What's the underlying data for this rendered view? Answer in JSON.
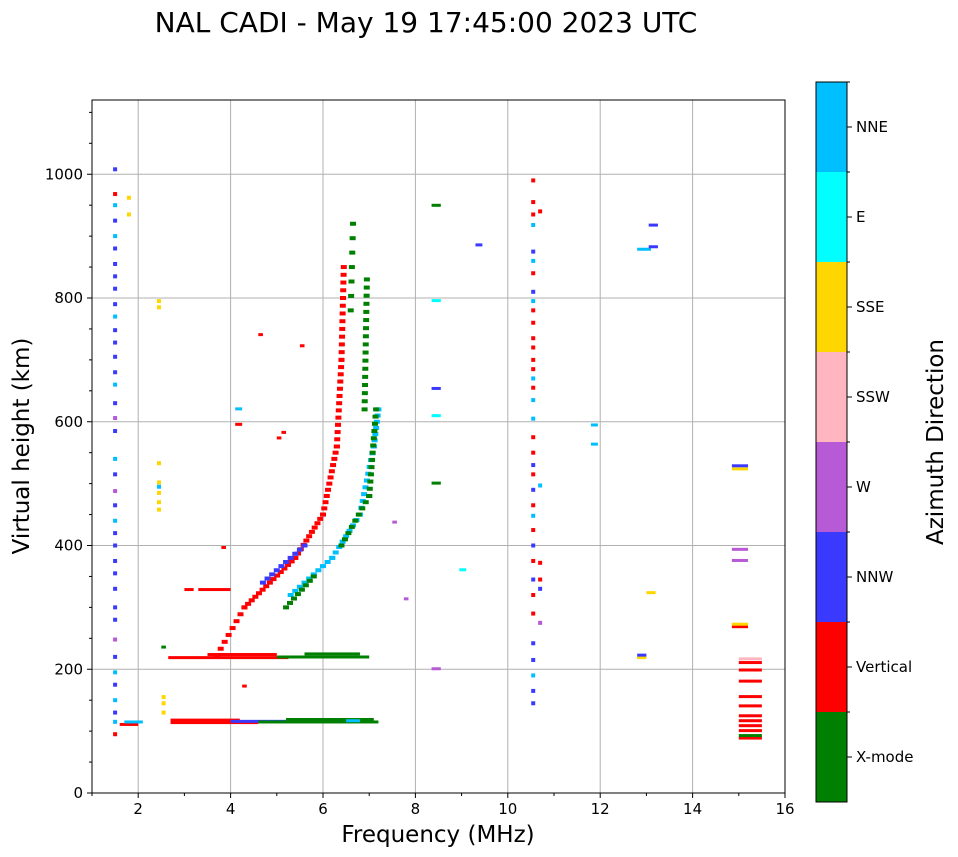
{
  "chart_data": {
    "type": "scatter",
    "title": "NAL CADI - May 19 17:45:00 2023 UTC",
    "xlabel": "Frequency (MHz)",
    "ylabel": "Virtual height (km)",
    "xlim": [
      1,
      16
    ],
    "ylim": [
      0,
      1120
    ],
    "xticks": [
      2,
      4,
      6,
      8,
      10,
      12,
      14,
      16
    ],
    "yticks": [
      0,
      200,
      400,
      600,
      800,
      1000
    ],
    "grid": true,
    "colorbar": {
      "title": "Azimuth Direction",
      "categories": [
        {
          "label": "X-mode",
          "color": "#008000"
        },
        {
          "label": "Vertical",
          "color": "#ff0000"
        },
        {
          "label": "NNW",
          "color": "#3a3aff"
        },
        {
          "label": "W",
          "color": "#b65ad6"
        },
        {
          "label": "SSW",
          "color": "#ffb6c1"
        },
        {
          "label": "SSE",
          "color": "#ffd700"
        },
        {
          "label": "E",
          "color": "#00ffff"
        },
        {
          "label": "NNE",
          "color": "#00bfff"
        }
      ]
    },
    "segments": [
      {
        "dir": "Vertical",
        "f1": 2.65,
        "f2": 5.25,
        "h": 218
      },
      {
        "dir": "Vertical",
        "f1": 3.5,
        "f2": 5.0,
        "h": 223
      },
      {
        "dir": "X-mode",
        "f1": 5.0,
        "f2": 7.0,
        "h": 219
      },
      {
        "dir": "X-mode",
        "f1": 5.6,
        "f2": 6.8,
        "h": 224
      },
      {
        "dir": "X-mode",
        "f1": 2.5,
        "f2": 2.6,
        "h": 235
      },
      {
        "dir": "Vertical",
        "f1": 2.7,
        "f2": 4.6,
        "h": 113
      },
      {
        "dir": "Vertical",
        "f1": 2.7,
        "f2": 4.2,
        "h": 117
      },
      {
        "dir": "NNW",
        "f1": 4.0,
        "f2": 5.2,
        "h": 115
      },
      {
        "dir": "X-mode",
        "f1": 4.6,
        "f2": 7.2,
        "h": 114
      },
      {
        "dir": "X-mode",
        "f1": 5.2,
        "f2": 7.1,
        "h": 118
      },
      {
        "dir": "NNE",
        "f1": 6.5,
        "f2": 6.8,
        "h": 116
      },
      {
        "dir": "Vertical",
        "f1": 3.3,
        "f2": 4.0,
        "h": 328
      },
      {
        "dir": "Vertical",
        "f1": 3.0,
        "f2": 3.2,
        "h": 328
      },
      {
        "dir": "Vertical",
        "f1": 1.6,
        "f2": 2.0,
        "h": 110
      },
      {
        "dir": "NNE",
        "f1": 1.7,
        "f2": 2.1,
        "h": 114
      },
      {
        "dir": "Vertical",
        "f1": 15.0,
        "f2": 15.5,
        "h": 88
      },
      {
        "dir": "X-mode",
        "f1": 15.0,
        "f2": 15.5,
        "h": 92
      },
      {
        "dir": "Vertical",
        "f1": 15.0,
        "f2": 15.5,
        "h": 100
      },
      {
        "dir": "Vertical",
        "f1": 15.0,
        "f2": 15.5,
        "h": 108
      },
      {
        "dir": "Vertical",
        "f1": 15.0,
        "f2": 15.5,
        "h": 116
      },
      {
        "dir": "Vertical",
        "f1": 15.0,
        "f2": 15.5,
        "h": 124
      },
      {
        "dir": "Vertical",
        "f1": 15.0,
        "f2": 15.5,
        "h": 140
      },
      {
        "dir": "Vertical",
        "f1": 15.0,
        "f2": 15.5,
        "h": 155
      },
      {
        "dir": "Vertical",
        "f1": 15.0,
        "f2": 15.5,
        "h": 180
      },
      {
        "dir": "Vertical",
        "f1": 15.0,
        "f2": 15.5,
        "h": 198
      },
      {
        "dir": "Vertical",
        "f1": 15.0,
        "f2": 15.5,
        "h": 210
      },
      {
        "dir": "SSW",
        "f1": 15.0,
        "f2": 15.5,
        "h": 216
      },
      {
        "dir": "Vertical",
        "f1": 14.85,
        "f2": 15.2,
        "h": 268
      },
      {
        "dir": "SSE",
        "f1": 14.85,
        "f2": 15.2,
        "h": 272
      },
      {
        "dir": "W",
        "f1": 14.85,
        "f2": 15.2,
        "h": 375
      },
      {
        "dir": "W",
        "f1": 14.85,
        "f2": 15.2,
        "h": 393
      },
      {
        "dir": "SSE",
        "f1": 14.85,
        "f2": 15.2,
        "h": 523
      },
      {
        "dir": "NNW",
        "f1": 14.85,
        "f2": 15.2,
        "h": 528
      },
      {
        "dir": "SSE",
        "f1": 12.8,
        "f2": 13.0,
        "h": 218
      },
      {
        "dir": "NNW",
        "f1": 12.8,
        "f2": 13.0,
        "h": 222
      },
      {
        "dir": "SSE",
        "f1": 13.0,
        "f2": 13.2,
        "h": 323
      },
      {
        "dir": "NNE",
        "f1": 12.8,
        "f2": 13.1,
        "h": 878
      },
      {
        "dir": "NNW",
        "f1": 13.05,
        "f2": 13.25,
        "h": 882
      },
      {
        "dir": "NNW",
        "f1": 13.05,
        "f2": 13.25,
        "h": 917
      },
      {
        "dir": "NNE",
        "f1": 11.8,
        "f2": 11.95,
        "h": 563
      },
      {
        "dir": "NNE",
        "f1": 11.8,
        "f2": 11.95,
        "h": 594
      },
      {
        "dir": "X-mode",
        "f1": 8.35,
        "f2": 8.55,
        "h": 500
      },
      {
        "dir": "NNW",
        "f1": 8.35,
        "f2": 8.55,
        "h": 653
      },
      {
        "dir": "E",
        "f1": 8.35,
        "f2": 8.55,
        "h": 609
      },
      {
        "dir": "E",
        "f1": 8.35,
        "f2": 8.55,
        "h": 795
      },
      {
        "dir": "X-mode",
        "f1": 8.35,
        "f2": 8.55,
        "h": 949
      },
      {
        "dir": "W",
        "f1": 8.35,
        "f2": 8.55,
        "h": 200
      },
      {
        "dir": "E",
        "f1": 8.95,
        "f2": 9.1,
        "h": 360
      },
      {
        "dir": "NNW",
        "f1": 9.3,
        "f2": 9.45,
        "h": 885
      },
      {
        "dir": "W",
        "f1": 7.75,
        "f2": 7.85,
        "h": 313
      },
      {
        "dir": "W",
        "f1": 7.5,
        "f2": 7.6,
        "h": 437
      },
      {
        "dir": "NNE",
        "f1": 4.1,
        "f2": 4.25,
        "h": 620
      },
      {
        "dir": "Vertical",
        "f1": 4.1,
        "f2": 4.25,
        "h": 595
      },
      {
        "dir": "Vertical",
        "f1": 4.6,
        "f2": 4.7,
        "h": 740
      },
      {
        "dir": "Vertical",
        "f1": 5.5,
        "f2": 5.6,
        "h": 722
      },
      {
        "dir": "Vertical",
        "f1": 5.0,
        "f2": 5.1,
        "h": 573
      },
      {
        "dir": "Vertical",
        "f1": 5.1,
        "f2": 5.2,
        "h": 582
      },
      {
        "dir": "Vertical",
        "f1": 4.25,
        "f2": 4.35,
        "h": 172
      },
      {
        "dir": "Vertical",
        "f1": 3.8,
        "f2": 3.9,
        "h": 396
      }
    ],
    "columns": [
      {
        "f": 1.5,
        "points": [
          {
            "dir": "NNW",
            "h": 1008
          },
          {
            "dir": "Vertical",
            "h": 968
          },
          {
            "dir": "NNE",
            "h": 950
          },
          {
            "dir": "NNW",
            "h": 925
          },
          {
            "dir": "NNE",
            "h": 900
          },
          {
            "dir": "NNW",
            "h": 880
          },
          {
            "dir": "NNW",
            "h": 855
          },
          {
            "dir": "NNW",
            "h": 835
          },
          {
            "dir": "NNW",
            "h": 815
          },
          {
            "dir": "NNW",
            "h": 790
          },
          {
            "dir": "NNE",
            "h": 770
          },
          {
            "dir": "NNW",
            "h": 748
          },
          {
            "dir": "NNW",
            "h": 728
          },
          {
            "dir": "NNW",
            "h": 705
          },
          {
            "dir": "NNW",
            "h": 680
          },
          {
            "dir": "NNE",
            "h": 660
          },
          {
            "dir": "NNW",
            "h": 630
          },
          {
            "dir": "W",
            "h": 606
          },
          {
            "dir": "NNW",
            "h": 585
          },
          {
            "dir": "NNE",
            "h": 540
          },
          {
            "dir": "NNW",
            "h": 515
          },
          {
            "dir": "W",
            "h": 488
          },
          {
            "dir": "NNW",
            "h": 465
          },
          {
            "dir": "NNE",
            "h": 440
          },
          {
            "dir": "NNW",
            "h": 420
          },
          {
            "dir": "NNW",
            "h": 400
          },
          {
            "dir": "NNW",
            "h": 375
          },
          {
            "dir": "NNW",
            "h": 355
          },
          {
            "dir": "NNW",
            "h": 330
          },
          {
            "dir": "NNW",
            "h": 300
          },
          {
            "dir": "NNW",
            "h": 280
          },
          {
            "dir": "W",
            "h": 248
          },
          {
            "dir": "NNW",
            "h": 220
          },
          {
            "dir": "NNE",
            "h": 195
          },
          {
            "dir": "NNW",
            "h": 175
          },
          {
            "dir": "NNE",
            "h": 150
          },
          {
            "dir": "NNW",
            "h": 130
          },
          {
            "dir": "NNE",
            "h": 115
          },
          {
            "dir": "Vertical",
            "h": 95
          }
        ]
      },
      {
        "f": 1.8,
        "points": [
          {
            "dir": "SSE",
            "h": 962
          },
          {
            "dir": "SSE",
            "h": 935
          }
        ]
      },
      {
        "f": 2.45,
        "points": [
          {
            "dir": "SSE",
            "h": 795
          },
          {
            "dir": "SSE",
            "h": 785
          },
          {
            "dir": "SSE",
            "h": 533
          },
          {
            "dir": "SSE",
            "h": 502
          },
          {
            "dir": "NNE",
            "h": 495
          },
          {
            "dir": "SSE",
            "h": 485
          },
          {
            "dir": "SSE",
            "h": 470
          },
          {
            "dir": "SSE",
            "h": 458
          }
        ]
      },
      {
        "f": 2.55,
        "points": [
          {
            "dir": "SSE",
            "h": 155
          },
          {
            "dir": "SSE",
            "h": 145
          },
          {
            "dir": "SSE",
            "h": 130
          }
        ]
      },
      {
        "f": 10.55,
        "points": [
          {
            "dir": "Vertical",
            "h": 990
          },
          {
            "dir": "Vertical",
            "h": 955
          },
          {
            "dir": "Vertical",
            "h": 935
          },
          {
            "dir": "NNE",
            "h": 918
          },
          {
            "dir": "NNW",
            "h": 875
          },
          {
            "dir": "NNE",
            "h": 860
          },
          {
            "dir": "Vertical",
            "h": 840
          },
          {
            "dir": "NNW",
            "h": 810
          },
          {
            "dir": "NNE",
            "h": 795
          },
          {
            "dir": "Vertical",
            "h": 780
          },
          {
            "dir": "Vertical",
            "h": 760
          },
          {
            "dir": "Vertical",
            "h": 735
          },
          {
            "dir": "Vertical",
            "h": 720
          },
          {
            "dir": "Vertical",
            "h": 700
          },
          {
            "dir": "Vertical",
            "h": 685
          },
          {
            "dir": "NNE",
            "h": 670
          },
          {
            "dir": "Vertical",
            "h": 655
          },
          {
            "dir": "NNE",
            "h": 635
          },
          {
            "dir": "NNE",
            "h": 605
          },
          {
            "dir": "Vertical",
            "h": 575
          },
          {
            "dir": "Vertical",
            "h": 550
          },
          {
            "dir": "NNW",
            "h": 530
          },
          {
            "dir": "Vertical",
            "h": 515
          },
          {
            "dir": "NNW",
            "h": 490
          },
          {
            "dir": "Vertical",
            "h": 465
          },
          {
            "dir": "NNE",
            "h": 448
          },
          {
            "dir": "Vertical",
            "h": 425
          },
          {
            "dir": "NNW",
            "h": 400
          },
          {
            "dir": "Vertical",
            "h": 375
          },
          {
            "dir": "NNW",
            "h": 345
          },
          {
            "dir": "Vertical",
            "h": 320
          },
          {
            "dir": "Vertical",
            "h": 290
          },
          {
            "dir": "NNW",
            "h": 242
          },
          {
            "dir": "NNW",
            "h": 215
          },
          {
            "dir": "NNE",
            "h": 190
          },
          {
            "dir": "NNW",
            "h": 165
          },
          {
            "dir": "NNW",
            "h": 145
          }
        ]
      },
      {
        "f": 10.7,
        "points": [
          {
            "dir": "Vertical",
            "h": 940
          },
          {
            "dir": "Vertical",
            "h": 372
          },
          {
            "dir": "NNE",
            "h": 497
          },
          {
            "dir": "W",
            "h": 275
          },
          {
            "dir": "NNW",
            "h": 330
          },
          {
            "dir": "Vertical",
            "h": 345
          }
        ]
      }
    ],
    "traces": [
      {
        "dir": "Vertical",
        "from": [
          3.7,
          222
        ],
        "to": [
          4.3,
          300
        ],
        "n": 7
      },
      {
        "dir": "Vertical",
        "from": [
          4.3,
          300
        ],
        "to": [
          5.4,
          380
        ],
        "n": 14
      },
      {
        "dir": "Vertical",
        "from": [
          5.4,
          380
        ],
        "to": [
          6.0,
          450
        ],
        "n": 10
      },
      {
        "dir": "Vertical",
        "from": [
          6.0,
          450
        ],
        "to": [
          6.3,
          560
        ],
        "n": 11
      },
      {
        "dir": "Vertical",
        "from": [
          6.3,
          560
        ],
        "to": [
          6.4,
          700
        ],
        "n": 12
      },
      {
        "dir": "Vertical",
        "from": [
          6.4,
          700
        ],
        "to": [
          6.45,
          850
        ],
        "n": 12
      },
      {
        "dir": "NNW",
        "from": [
          4.7,
          340
        ],
        "to": [
          5.6,
          400
        ],
        "n": 9
      },
      {
        "dir": "NNE",
        "from": [
          5.3,
          320
        ],
        "to": [
          6.2,
          380
        ],
        "n": 9
      },
      {
        "dir": "X-mode",
        "from": [
          5.2,
          300
        ],
        "to": [
          5.8,
          350
        ],
        "n": 7
      },
      {
        "dir": "NNE",
        "from": [
          6.2,
          380
        ],
        "to": [
          6.8,
          450
        ],
        "n": 8
      },
      {
        "dir": "NNE",
        "from": [
          6.8,
          450
        ],
        "to": [
          7.1,
          560
        ],
        "n": 10
      },
      {
        "dir": "NNE",
        "from": [
          7.1,
          560
        ],
        "to": [
          7.2,
          620
        ],
        "n": 6
      },
      {
        "dir": "X-mode",
        "from": [
          6.4,
          400
        ],
        "to": [
          7.0,
          480
        ],
        "n": 8
      },
      {
        "dir": "X-mode",
        "from": [
          7.0,
          480
        ],
        "to": [
          7.15,
          620
        ],
        "n": 12
      },
      {
        "dir": "X-mode",
        "from": [
          6.9,
          620
        ],
        "to": [
          6.95,
          830
        ],
        "n": 16
      },
      {
        "dir": "X-mode",
        "from": [
          6.6,
          780
        ],
        "to": [
          6.65,
          920
        ],
        "n": 6
      }
    ]
  }
}
